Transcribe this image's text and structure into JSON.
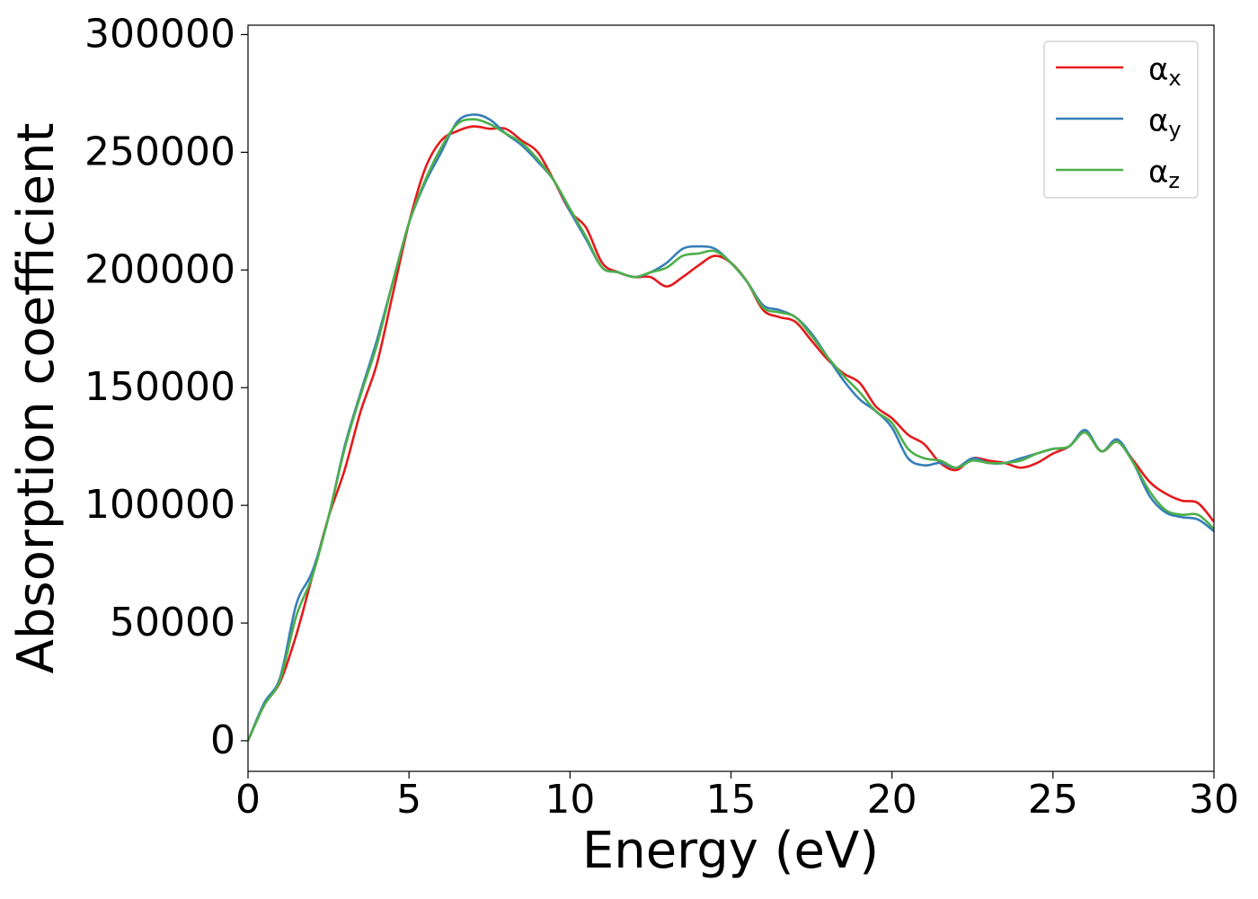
{
  "chart_data": {
    "type": "line",
    "xlabel": "Energy (eV)",
    "ylabel": "Absorption coefficient",
    "x": [
      0,
      0.5,
      1,
      1.5,
      2,
      2.5,
      3,
      3.5,
      4,
      4.5,
      5,
      5.5,
      6,
      6.5,
      7,
      7.5,
      8,
      8.5,
      9,
      9.5,
      10,
      10.5,
      11,
      11.5,
      12,
      12.5,
      13,
      13.5,
      14,
      14.5,
      15,
      15.5,
      16,
      16.5,
      17,
      17.5,
      18,
      18.5,
      19,
      19.5,
      20,
      20.5,
      21,
      21.5,
      22,
      22.5,
      23,
      23.5,
      24,
      24.5,
      25,
      25.5,
      26,
      26.5,
      27,
      27.5,
      28,
      28.5,
      29,
      29.5,
      30
    ],
    "series": [
      {
        "name": "αx",
        "color": "#e41a1c",
        "values": [
          0,
          15000,
          25000,
          45000,
          70000,
          95000,
          115000,
          140000,
          160000,
          190000,
          220000,
          243000,
          255000,
          259000,
          261000,
          260000,
          260000,
          255000,
          250000,
          238000,
          225000,
          218000,
          203000,
          199000,
          197000,
          197000,
          193000,
          197000,
          202000,
          206000,
          203000,
          195000,
          183000,
          180000,
          178000,
          170000,
          162000,
          156000,
          152000,
          142000,
          137000,
          130000,
          126000,
          118000,
          115000,
          120000,
          119000,
          118000,
          116000,
          118000,
          122000,
          125000,
          131000,
          123000,
          127000,
          119000,
          110000,
          105000,
          102000,
          101000,
          93000
        ]
      },
      {
        "name": "αy",
        "color": "#377eb8",
        "values": [
          0,
          16000,
          27000,
          58000,
          72000,
          95000,
          125000,
          148000,
          170000,
          195000,
          220000,
          237000,
          250000,
          263000,
          266000,
          264000,
          258000,
          253000,
          246000,
          238000,
          225000,
          213000,
          201000,
          199000,
          197000,
          199000,
          203000,
          209000,
          210000,
          209000,
          203000,
          195000,
          185000,
          183000,
          180000,
          173000,
          163000,
          153000,
          145000,
          140000,
          133000,
          120000,
          117000,
          118000,
          116000,
          120000,
          118000,
          118000,
          120000,
          122000,
          124000,
          125000,
          132000,
          123000,
          128000,
          118000,
          104000,
          97000,
          95000,
          94000,
          89000
        ]
      },
      {
        "name": "αz",
        "color": "#4daf4a",
        "values": [
          0,
          15000,
          26000,
          53000,
          70000,
          95000,
          124000,
          147000,
          168000,
          195000,
          220000,
          238000,
          252000,
          262000,
          264000,
          262000,
          258000,
          254000,
          247000,
          238000,
          226000,
          214000,
          201000,
          199000,
          197000,
          199000,
          201000,
          206000,
          207000,
          208000,
          203000,
          195000,
          184000,
          182000,
          180000,
          172000,
          163000,
          155000,
          148000,
          140000,
          135000,
          124000,
          120000,
          119000,
          116000,
          119000,
          118000,
          118000,
          119000,
          122000,
          124000,
          125000,
          131000,
          123000,
          127000,
          118000,
          106000,
          98000,
          96000,
          96000,
          90000
        ]
      }
    ],
    "xlim": [
      0,
      30
    ],
    "xticks": [
      0,
      5,
      10,
      15,
      20,
      25,
      30
    ],
    "ylim": [
      -13000,
      304000
    ],
    "yticks": [
      0,
      50000,
      100000,
      150000,
      200000,
      250000,
      300000
    ],
    "grid": false,
    "legend": "upper right"
  }
}
